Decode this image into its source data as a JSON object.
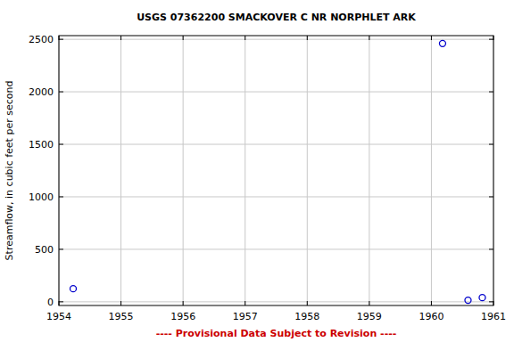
{
  "chart_data": {
    "type": "scatter",
    "title": "USGS 07362200 SMACKOVER C NR NORPHLET ARK",
    "y_label": "Streamflow, in cubic feet per second",
    "footer": "---- Provisional Data Subject to Revision ----",
    "x": [
      1954.23,
      1960.18,
      1960.59,
      1960.82
    ],
    "values": [
      125,
      2460,
      15,
      40
    ],
    "color": "#0000cc",
    "marker": "circle",
    "xlim": [
      1954,
      1961
    ],
    "xticks": [
      1954,
      1955,
      1956,
      1957,
      1958,
      1959,
      1960,
      1961
    ],
    "ylim": [
      -35,
      2535
    ],
    "yticks": [
      0,
      500,
      1000,
      1500,
      2000,
      2500
    ],
    "grid": true
  }
}
